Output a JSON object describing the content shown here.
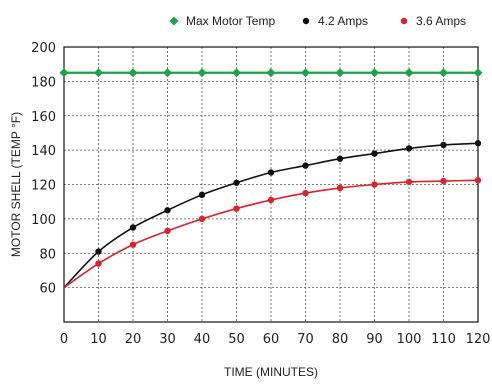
{
  "chart_data": {
    "type": "line",
    "xlabel": "TIME (MINUTES)",
    "ylabel": "MOTOR SHELL (TEMP °F)",
    "xlim": [
      0,
      120
    ],
    "ylim": [
      40,
      200
    ],
    "x_ticks": [
      0,
      10,
      20,
      30,
      40,
      50,
      60,
      70,
      80,
      90,
      100,
      110,
      120
    ],
    "y_ticks": [
      60,
      80,
      100,
      120,
      140,
      160,
      180,
      200
    ],
    "grid": true,
    "legend_position": "top-right",
    "series": [
      {
        "name": "Max Motor Temp",
        "color": "#1aa34a",
        "marker": "diamond",
        "x": [
          0,
          10,
          20,
          30,
          40,
          50,
          60,
          70,
          80,
          90,
          100,
          110,
          120
        ],
        "y": [
          185,
          185,
          185,
          185,
          185,
          185,
          185,
          185,
          185,
          185,
          185,
          185,
          185
        ]
      },
      {
        "name": "4.2 Amps",
        "color": "#111111",
        "marker": "circle",
        "x": [
          0,
          10,
          20,
          30,
          40,
          50,
          60,
          70,
          80,
          90,
          100,
          110,
          120
        ],
        "y": [
          60,
          81,
          95,
          105,
          114,
          121,
          127,
          131,
          135,
          138,
          141,
          143,
          144
        ]
      },
      {
        "name": "3.6 Amps",
        "color": "#e0202a",
        "marker": "circle",
        "x": [
          0,
          10,
          20,
          30,
          40,
          50,
          60,
          70,
          80,
          90,
          100,
          110,
          120
        ],
        "y": [
          60,
          74,
          85,
          93,
          100,
          106,
          111,
          115,
          118,
          120,
          121.5,
          122,
          122.5
        ]
      }
    ]
  }
}
